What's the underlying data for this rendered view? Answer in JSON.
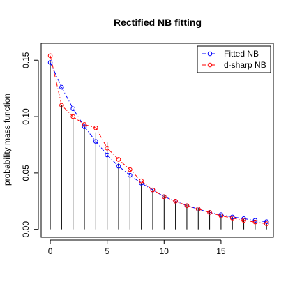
{
  "chart_data": {
    "type": "line",
    "title": "Rectified NB fitting",
    "xlabel": "",
    "ylabel": "probability mass function",
    "xlim": [
      -0.8,
      19.6
    ],
    "ylim": [
      -0.007,
      0.165
    ],
    "x_ticks": [
      0,
      5,
      10,
      15
    ],
    "y_ticks": [
      0.0,
      0.05,
      0.1,
      0.15
    ],
    "y_tick_labels": [
      "0.00",
      "0.05",
      "0.10",
      "0.15"
    ],
    "x": [
      0,
      1,
      2,
      3,
      4,
      5,
      6,
      7,
      8,
      9,
      10,
      11,
      12,
      13,
      14,
      15,
      16,
      17,
      18,
      19
    ],
    "histogram_bars": [
      0.15,
      0.11,
      0.098,
      0.093,
      0.086,
      0.077,
      0.059,
      0.049,
      0.041,
      0.036,
      0.03,
      0.025,
      0.022,
      0.019,
      0.016,
      0.013,
      0.011,
      0.009,
      0.008,
      0.006
    ],
    "series": [
      {
        "name": "Fitted NB",
        "color": "#0000ff",
        "line_style": "dashdot",
        "values": [
          0.148,
          0.126,
          0.107,
          0.091,
          0.078,
          0.066,
          0.056,
          0.048,
          0.041,
          0.035,
          0.029,
          0.025,
          0.021,
          0.018,
          0.015,
          0.013,
          0.011,
          0.0095,
          0.008,
          0.0068
        ]
      },
      {
        "name": "d-sharp NB",
        "color": "#ff0000",
        "line_style": "dashdot",
        "values": [
          0.154,
          0.11,
          0.1,
          0.093,
          0.09,
          0.072,
          0.062,
          0.053,
          0.043,
          0.035,
          0.029,
          0.025,
          0.021,
          0.018,
          0.015,
          0.012,
          0.01,
          0.008,
          0.0065,
          0.005
        ]
      }
    ],
    "legend_position": "top-right",
    "grid": false
  }
}
